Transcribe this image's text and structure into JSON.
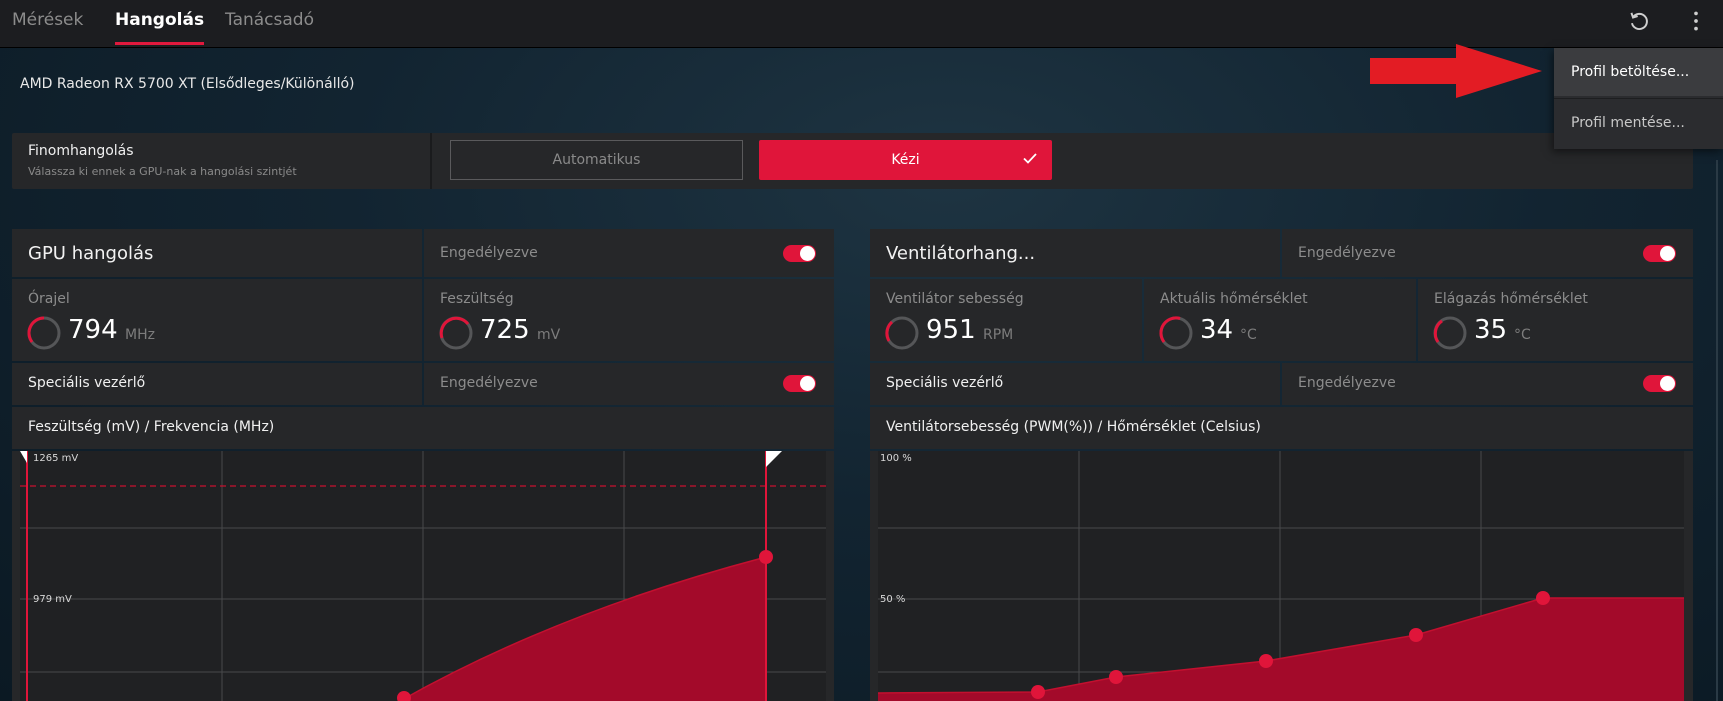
{
  "tabs": [
    {
      "label": "Mérések",
      "active": false
    },
    {
      "label": "Hangolás",
      "active": true
    },
    {
      "label": "Tanácsadó",
      "active": false
    }
  ],
  "toolbar_icons": [
    "reset-icon",
    "more-vert-icon"
  ],
  "gpu_name": "AMD Radeon RX 5700 XT (Elsődleges/Különálló)",
  "tuning": {
    "title": "Finomhangolás",
    "subtitle": "Válassza ki ennek a GPU-nak a hangolási szintjét",
    "auto_label": "Automatikus",
    "manual_label": "Kézi",
    "selected": "Kézi"
  },
  "gpu_panel": {
    "title": "GPU hangolás",
    "enabled_label": "Engedélyezve",
    "enabled": true,
    "metrics": [
      {
        "label": "Órajel",
        "value": "794",
        "unit": "MHz"
      },
      {
        "label": "Feszültség",
        "value": "725",
        "unit": "mV"
      }
    ],
    "advanced_label": "Speciális vezérlő",
    "advanced_enabled_label": "Engedélyezve",
    "advanced_enabled": true,
    "chart_title": "Feszültség (mV) / Frekvencia (MHz)"
  },
  "fan_panel": {
    "title": "Ventilátorhang...",
    "enabled_label": "Engedélyezve",
    "enabled": true,
    "metrics": [
      {
        "label": "Ventilátor sebesség",
        "value": "951",
        "unit": "RPM"
      },
      {
        "label": "Aktuális hőmérséklet",
        "value": "34",
        "unit": "°C"
      },
      {
        "label": "Elágazás hőmérséklet",
        "value": "35",
        "unit": "°C"
      }
    ],
    "advanced_label": "Speciális vezérlő",
    "advanced_enabled_label": "Engedélyezve",
    "advanced_enabled": true,
    "chart_title": "Ventilátorsebesség (PWM(%)) / Hőmérséklet (Celsius)"
  },
  "voltage_chart": {
    "y_labels": [
      "1265 mV",
      "979 mV"
    ]
  },
  "fan_chart": {
    "y_labels": [
      "100 %",
      "50 %"
    ]
  },
  "menu": {
    "items": [
      "Profil betöltése...",
      "Profil mentése..."
    ],
    "highlighted": "Profil betöltése..."
  },
  "colors": {
    "accent": "#e0153a",
    "fill": "#a30a2a",
    "arrow": "#e31c24"
  }
}
